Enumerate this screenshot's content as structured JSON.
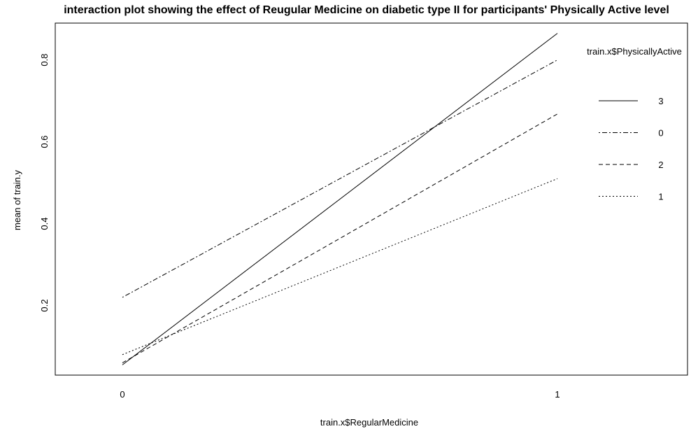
{
  "chart_data": {
    "type": "line",
    "title": "interaction plot showing the effect of Reugular Medicine on diabetic type II for participants' Physically Active level",
    "xlabel": "train.x$RegularMedicine",
    "ylabel": "mean of train.y",
    "x": [
      "0",
      "1"
    ],
    "ylim": [
      0.03,
      0.89
    ],
    "yticks": [
      "0.2",
      "0.4",
      "0.6",
      "0.8"
    ],
    "legend_title": "train.x$PhysicallyActive",
    "legend_position": "right",
    "grid": false,
    "series": [
      {
        "name": "3",
        "values": [
          0.055,
          0.865
        ],
        "line_style": "solid"
      },
      {
        "name": "0",
        "values": [
          0.22,
          0.8
        ],
        "line_style": "dotdash"
      },
      {
        "name": "2",
        "values": [
          0.06,
          0.668
        ],
        "line_style": "dashed"
      },
      {
        "name": "1",
        "values": [
          0.08,
          0.51
        ],
        "line_style": "dotted"
      }
    ],
    "colors": {
      "line": "#000000",
      "background": "#ffffff"
    }
  }
}
